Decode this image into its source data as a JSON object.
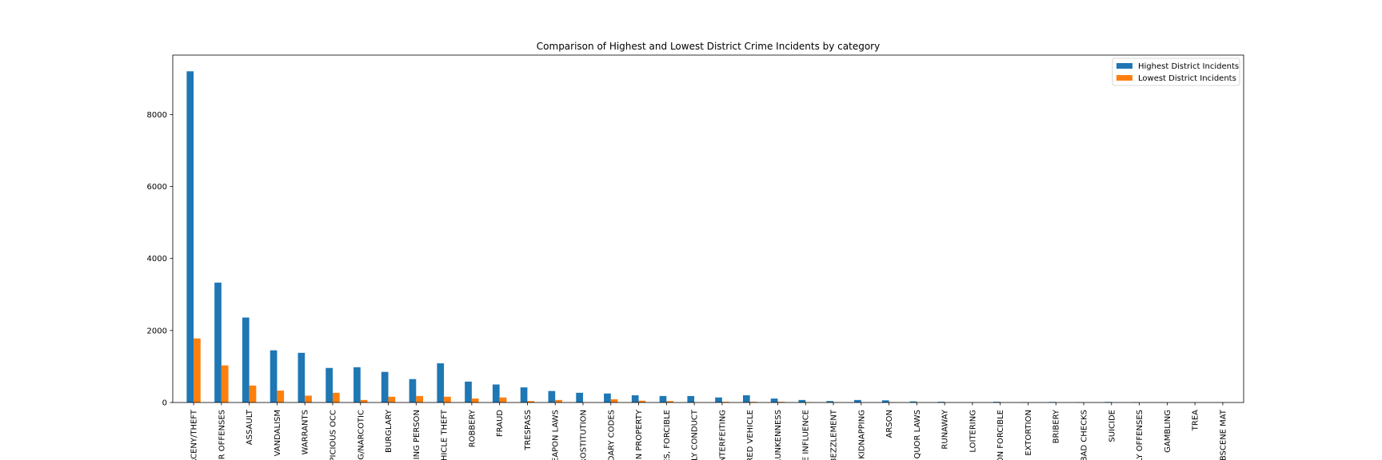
{
  "chart_data": {
    "type": "bar",
    "title": "Comparison of Highest and Lowest District Crime Incidents by category",
    "xlabel": "",
    "ylabel": "",
    "ylim": [
      0,
      9650
    ],
    "yticks": [
      0,
      2000,
      4000,
      6000,
      8000
    ],
    "grid": false,
    "legend_placement": "top-right",
    "categories": [
      "LARCENY/THEFT",
      "OTHER OFFENSES",
      "ASSAULT",
      "VANDALISM",
      "WARRANTS",
      "SUSPICIOUS OCC",
      "DRUG/NARCOTIC",
      "BURGLARY",
      "MISSING PERSON",
      "VEHICLE THEFT",
      "ROBBERY",
      "FRAUD",
      "TRESPASS",
      "WEAPON LAWS",
      "PROSTITUTION",
      "SECONDARY CODES",
      "STOLEN PROPERTY",
      "SEX OFFENSES, FORCIBLE",
      "DISORDERLY CONDUCT",
      "FORGERY/COUNTERFEITING",
      "RECOVERED VEHICLE",
      "DRUNKENNESS",
      "DRIVING UNDER THE INFLUENCE",
      "EMBEZZLEMENT",
      "KIDNAPPING",
      "ARSON",
      "LIQUOR LAWS",
      "RUNAWAY",
      "LOITERING",
      "SEX OFFENSES, NON FORCIBLE",
      "EXTORTION",
      "BRIBERY",
      "BAD CHECKS",
      "SUICIDE",
      "FAMILY OFFENSES",
      "GAMBLING",
      "TREA",
      "PORNOGRAPHY/OBSCENE MAT"
    ],
    "tick_labels": [
      "RCENY/THEFT",
      "ER OFFENSES",
      "ASSAULT",
      "VANDALISM",
      "WARRANTS",
      "PICIOUS OCC",
      "G/NARCOTIC",
      "BURGLARY",
      "SING PERSON",
      "HICLE THEFT",
      "ROBBERY",
      "FRAUD",
      "TRESPASS",
      "EAPON LAWS",
      "ROSTITUTION",
      "DARY CODES",
      "EN PROPERTY",
      "ES, FORCIBLE",
      "LY CONDUCT",
      "NTERFEITING",
      "RED VEHICLE",
      "RUNKENNESS",
      "E INFLUENCE",
      "BEZZLEMENT",
      "KIDNAPPING",
      "ARSON",
      "QUOR LAWS",
      "RUNAWAY",
      "LOITERING",
      "ON FORCIBLE",
      "EXTORTION",
      "BRIBERY",
      "BAD CHECKS",
      "SUICIDE",
      "LY OFFENSES",
      "GAMBLING",
      "TREA",
      "BSCENE MAT"
    ],
    "series": [
      {
        "name": "Highest District Incidents",
        "color": "#1f77b4",
        "values": [
          9200,
          3330,
          2360,
          1450,
          1380,
          960,
          980,
          850,
          650,
          1090,
          580,
          500,
          420,
          320,
          270,
          250,
          200,
          180,
          180,
          140,
          200,
          110,
          70,
          40,
          70,
          60,
          30,
          20,
          5,
          20,
          8,
          15,
          8,
          15,
          10,
          4,
          2,
          2
        ]
      },
      {
        "name": "Lowest District Incidents",
        "color": "#ff7f0e",
        "values": [
          1780,
          1030,
          470,
          330,
          190,
          270,
          70,
          160,
          180,
          160,
          110,
          140,
          40,
          70,
          0,
          90,
          50,
          40,
          0,
          20,
          20,
          20,
          10,
          10,
          0,
          10,
          0,
          0,
          0,
          0,
          0,
          0,
          0,
          0,
          0,
          0,
          0,
          0
        ]
      }
    ]
  }
}
